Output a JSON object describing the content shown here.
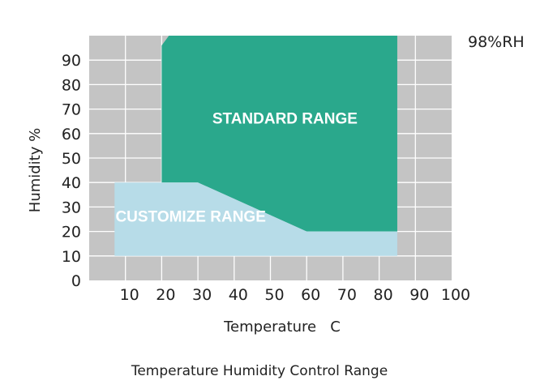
{
  "chart_data": {
    "type": "area",
    "xlabel": "Temperature   C",
    "ylabel": "Humidity %",
    "xlim": [
      0,
      100
    ],
    "ylim": [
      0,
      100
    ],
    "x_ticks": [
      10,
      20,
      30,
      40,
      50,
      60,
      70,
      80,
      90,
      100
    ],
    "y_ticks": [
      0,
      10,
      20,
      30,
      40,
      50,
      60,
      70,
      80,
      90
    ],
    "grid": true,
    "side_label": "98%RH",
    "caption": "Temperature Humidity Control Range",
    "regions": [
      {
        "label": "STANDARD RANGE",
        "color": "#2aa88c",
        "points": [
          [
            20,
            40
          ],
          [
            30,
            40
          ],
          [
            60,
            20
          ],
          [
            85,
            20
          ],
          [
            85,
            100
          ],
          [
            22,
            100
          ],
          [
            20,
            96
          ]
        ]
      },
      {
        "label": "CUSTOMIZE RANGE",
        "color": "#b7dce8",
        "points": [
          [
            7,
            10
          ],
          [
            85,
            10
          ],
          [
            85,
            20
          ],
          [
            60,
            20
          ],
          [
            30,
            40
          ],
          [
            7,
            40
          ]
        ]
      }
    ]
  },
  "colors": {
    "plot_background": "#c4c4c4",
    "grid": "#ffffff"
  }
}
